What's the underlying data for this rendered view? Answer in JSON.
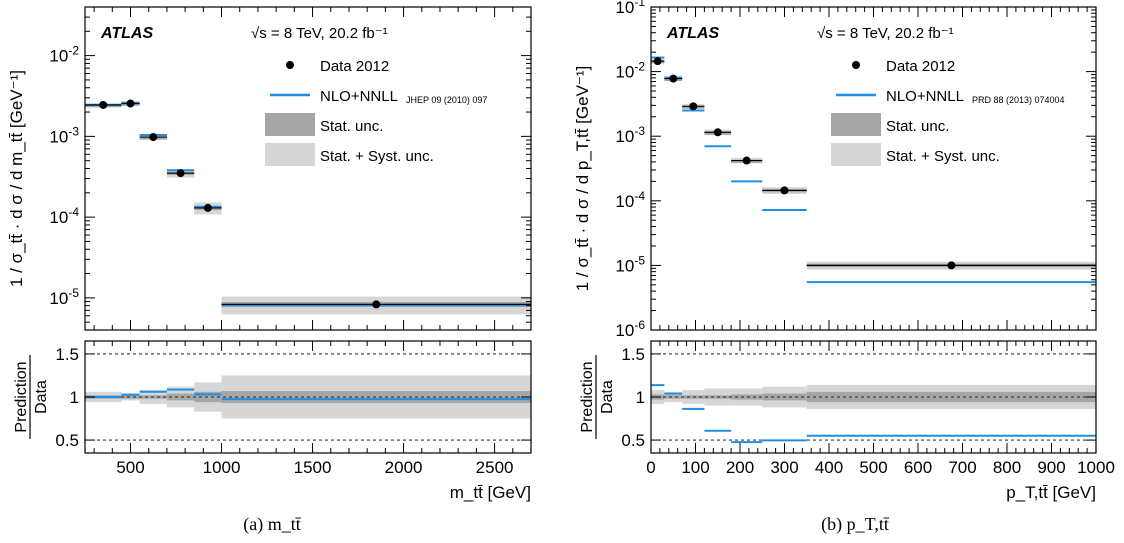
{
  "figure": {
    "colors": {
      "data_marker": "#000000",
      "prediction_line": "#1f8fe5",
      "stat_band": "#a6a6a6",
      "stat_syst_band": "#d6d6d6",
      "reference_line": "#000000"
    },
    "legend": {
      "data": "Data 2012",
      "prediction": "NLO+NNLL",
      "stat": "Stat. unc.",
      "stat_syst": "Stat. + Syst. unc."
    },
    "ratio_ylabel_top": "Prediction",
    "ratio_ylabel_bottom": "Data"
  },
  "chart_data": [
    {
      "type": "scatter",
      "caption": "(a) m_tt̄",
      "experiment": "ATLAS",
      "energy_lumi": "√s = 8 TeV, 20.2 fb⁻¹",
      "ylabel": "1 / σ_tt̄ · d σ / d m_tt̄ [GeV⁻¹]",
      "xlabel": "m_tt̄ [GeV]",
      "prediction_ref": "JHEP 09 (2010) 097",
      "yscale": "log",
      "xlim": [
        250,
        2700
      ],
      "ylim": [
        4e-06,
        0.04
      ],
      "xticks": [
        500,
        1000,
        1500,
        2000,
        2500
      ],
      "yticks": [
        1e-05,
        0.0001,
        0.001,
        0.01
      ],
      "ytick_labels": [
        "10⁻⁵",
        "10⁻⁴",
        "10⁻³",
        "10⁻²"
      ],
      "bins": [
        {
          "low": 250,
          "high": 450,
          "data": 0.00245,
          "pred": 0.00245,
          "stat": 0.02,
          "syst": 0.06
        },
        {
          "low": 450,
          "high": 550,
          "data": 0.00255,
          "pred": 0.00262,
          "stat": 0.02,
          "syst": 0.04
        },
        {
          "low": 550,
          "high": 700,
          "data": 0.00098,
          "pred": 0.00104,
          "stat": 0.02,
          "syst": 0.08
        },
        {
          "low": 700,
          "high": 850,
          "data": 0.00035,
          "pred": 0.00038,
          "stat": 0.04,
          "syst": 0.12
        },
        {
          "low": 850,
          "high": 1000,
          "data": 0.00013,
          "pred": 0.000134,
          "stat": 0.06,
          "syst": 0.17
        },
        {
          "low": 1000,
          "high": 2700,
          "data": 8.3e-06,
          "pred": 8.1e-06,
          "stat": 0.07,
          "syst": 0.25
        }
      ],
      "ratio": {
        "ylim": [
          0.35,
          1.65
        ],
        "yticks": [
          0.5,
          1,
          1.5
        ],
        "ytick_labels": [
          "0.5",
          "1",
          "1.5"
        ]
      }
    },
    {
      "type": "scatter",
      "caption": "(b) p_T,tt̄",
      "experiment": "ATLAS",
      "energy_lumi": "√s = 8 TeV, 20.2 fb⁻¹",
      "ylabel": "1 / σ_tt̄ · d σ / d p_T,tt̄ [GeV⁻¹]",
      "xlabel": "p_T,tt̄ [GeV]",
      "prediction_ref": "PRD 88 (2013) 074004",
      "yscale": "log",
      "xlim": [
        0,
        1000
      ],
      "ylim": [
        1e-06,
        0.1
      ],
      "xticks": [
        0,
        100,
        200,
        300,
        400,
        500,
        600,
        700,
        800,
        900,
        1000
      ],
      "yticks": [
        1e-06,
        1e-05,
        0.0001,
        0.001,
        0.01,
        0.1
      ],
      "ytick_labels": [
        "10⁻⁶",
        "10⁻⁵",
        "10⁻⁴",
        "10⁻³",
        "10⁻²",
        "10⁻¹"
      ],
      "bins": [
        {
          "low": 0,
          "high": 30,
          "data": 0.0145,
          "pred": 0.0165,
          "stat": 0.03,
          "syst": 0.08
        },
        {
          "low": 30,
          "high": 70,
          "data": 0.0078,
          "pred": 0.0081,
          "stat": 0.02,
          "syst": 0.06
        },
        {
          "low": 70,
          "high": 120,
          "data": 0.0029,
          "pred": 0.0025,
          "stat": 0.02,
          "syst": 0.08
        },
        {
          "low": 120,
          "high": 180,
          "data": 0.00115,
          "pred": 0.0007,
          "stat": 0.02,
          "syst": 0.1
        },
        {
          "low": 180,
          "high": 250,
          "data": 0.00042,
          "pred": 0.0002,
          "stat": 0.03,
          "syst": 0.1
        },
        {
          "low": 250,
          "high": 350,
          "data": 0.000145,
          "pred": 7.2e-05,
          "stat": 0.04,
          "syst": 0.12
        },
        {
          "low": 350,
          "high": 1000,
          "data": 1e-05,
          "pred": 5.5e-06,
          "stat": 0.06,
          "syst": 0.14
        }
      ],
      "ratio": {
        "ylim": [
          0.35,
          1.65
        ],
        "yticks": [
          0.5,
          1,
          1.5
        ],
        "ytick_labels": [
          "0.5",
          "1",
          "1.5"
        ]
      }
    }
  ]
}
